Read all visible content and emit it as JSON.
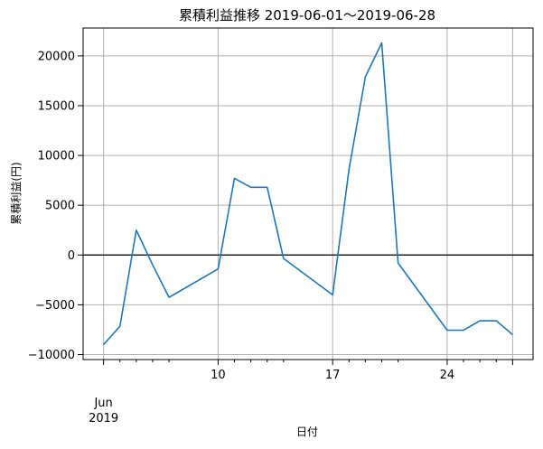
{
  "chart_data": {
    "type": "line",
    "title": "累積利益推移  2019-06-01〜2019-06-28",
    "xlabel": "日付",
    "ylabel": "累積利益(円)",
    "x": [
      "2019-06-03",
      "2019-06-04",
      "2019-06-05",
      "2019-06-06",
      "2019-06-07",
      "2019-06-10",
      "2019-06-11",
      "2019-06-12",
      "2019-06-13",
      "2019-06-14",
      "2019-06-17",
      "2019-06-18",
      "2019-06-19",
      "2019-06-20",
      "2019-06-21",
      "2019-06-24",
      "2019-06-25",
      "2019-06-26",
      "2019-06-27",
      "2019-06-28"
    ],
    "series": [
      {
        "values": [
          -9000,
          -7150,
          2500,
          -1000,
          -4250,
          -1400,
          7700,
          6800,
          6800,
          -350,
          -4000,
          8600,
          17900,
          21300,
          -800,
          -7550,
          -7550,
          -6600,
          -6600,
          -8000
        ],
        "color": "#1f77b4"
      }
    ],
    "xlim": [
      "2019-06-03",
      "2019-06-28"
    ],
    "ylim": [
      -10500,
      22800
    ],
    "y_ticks": [
      -10000,
      -5000,
      0,
      5000,
      10000,
      15000,
      20000
    ],
    "y_tick_labels": [
      "−10000",
      "−5000",
      "0",
      "5000",
      "10000",
      "15000",
      "20000"
    ],
    "x_ticks": [
      "2019-06-03",
      "2019-06-10",
      "2019-06-17",
      "2019-06-24",
      "2019-06-28"
    ],
    "x_tick_labels": [
      "Jun\n2019",
      "10",
      "17",
      "24",
      ""
    ],
    "x_minor_ticks": [
      "2019-06-04",
      "2019-06-05",
      "2019-06-06",
      "2019-06-07",
      "2019-06-11",
      "2019-06-12",
      "2019-06-13",
      "2019-06-14",
      "2019-06-18",
      "2019-06-19",
      "2019-06-20",
      "2019-06-21",
      "2019-06-25",
      "2019-06-26",
      "2019-06-27"
    ],
    "zero_line": true,
    "grid": true,
    "legend": "none"
  }
}
